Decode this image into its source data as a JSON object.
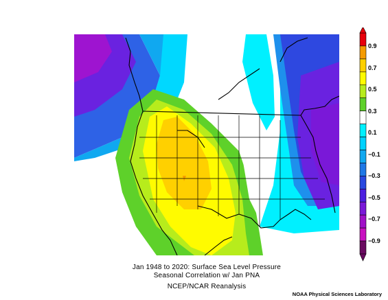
{
  "title": {
    "line1": "Jan 1948 to 2020: Surface Sea Level Pressure",
    "line2": "Seasonal Correlation w/ Jan PNA",
    "line3": "NCEP/NCAR Reanalysis"
  },
  "credit": "NOAA Physical Sciences Laboratory",
  "colorbar": {
    "labels": [
      "0.9",
      "0.7",
      "0.5",
      "0.3",
      "0.1",
      "−0.1",
      "−0.3",
      "−0.5",
      "−0.7",
      "−0.9"
    ],
    "colors": [
      "#e8000b",
      "#f59b00",
      "#ffd000",
      "#fffb00",
      "#b7ec1c",
      "#5ed12a",
      "#ffffff",
      "#00f0ff",
      "#00d2ff",
      "#10a8f0",
      "#1e78e6",
      "#2848e0",
      "#4c1fe0",
      "#7a18d8",
      "#a010c8",
      "#c810c0",
      "#6a0a60"
    ]
  }
}
